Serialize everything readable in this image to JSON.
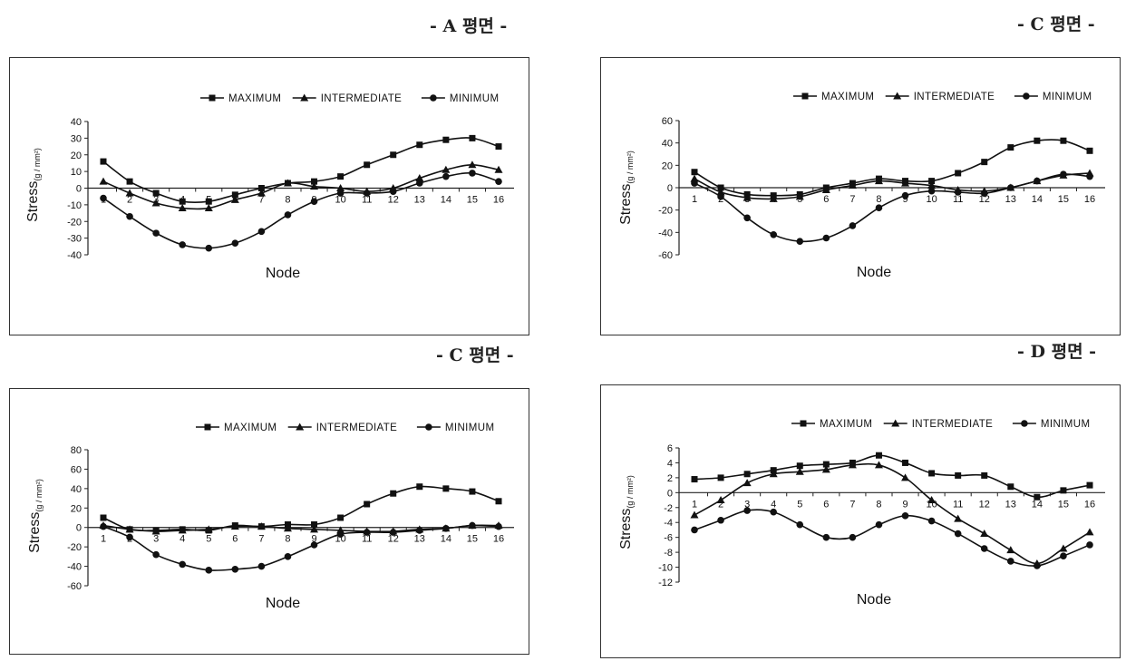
{
  "panel_titles": [
    "- A 평면 -",
    "- C 평면 -",
    "- C 평면 -",
    "- D 평면 -"
  ],
  "legend": [
    "MAXIMUM",
    "INTERMEDIATE",
    "MINIMUM"
  ],
  "xlabel": "Node",
  "ylabel_main": "Stress",
  "ylabel_sub": "(g / mm²)",
  "chart_data": [
    {
      "type": "line",
      "title": "- A 평면 -",
      "xlabel": "Node",
      "ylabel": "Stress(g / mm²)",
      "ylim": [
        -40,
        40
      ],
      "yticks": [
        40,
        30,
        20,
        10,
        0,
        -10,
        -20,
        -30,
        -40
      ],
      "x": [
        1,
        2,
        3,
        4,
        5,
        6,
        7,
        8,
        9,
        10,
        11,
        12,
        13,
        14,
        15,
        16
      ],
      "legend_position": "top-right",
      "series": [
        {
          "name": "MAXIMUM",
          "marker": "square",
          "values": [
            16,
            4,
            -3,
            -8,
            -8,
            -4,
            0,
            3,
            4,
            7,
            14,
            20,
            26,
            29,
            30,
            25
          ]
        },
        {
          "name": "INTERMEDIATE",
          "marker": "triangle",
          "values": [
            4,
            -3,
            -9,
            -12,
            -12,
            -7,
            -3,
            3,
            1,
            0,
            -2,
            0,
            6,
            11,
            14,
            11
          ]
        },
        {
          "name": "MINIMUM",
          "marker": "circle",
          "values": [
            -6,
            -17,
            -27,
            -34,
            -36,
            -33,
            -26,
            -16,
            -8,
            -3,
            -3,
            -2,
            3,
            7,
            9,
            4
          ]
        }
      ]
    },
    {
      "type": "line",
      "title": "- C 평면 -",
      "xlabel": "Node",
      "ylabel": "Stress(g / mm²)",
      "ylim": [
        -60,
        60
      ],
      "yticks": [
        60,
        40,
        20,
        0,
        -20,
        -40,
        -60
      ],
      "x": [
        1,
        2,
        3,
        4,
        5,
        6,
        7,
        8,
        9,
        10,
        11,
        12,
        13,
        14,
        15,
        16
      ],
      "legend_position": "top-right",
      "series": [
        {
          "name": "MAXIMUM",
          "marker": "square",
          "values": [
            14,
            0,
            -6,
            -7,
            -6,
            0,
            4,
            8,
            6,
            6,
            13,
            23,
            36,
            42,
            42,
            33
          ]
        },
        {
          "name": "INTERMEDIATE",
          "marker": "triangle",
          "values": [
            8,
            -4,
            -9,
            -10,
            -8,
            -2,
            2,
            6,
            4,
            2,
            -2,
            -3,
            0,
            6,
            11,
            13
          ]
        },
        {
          "name": "MINIMUM",
          "marker": "circle",
          "values": [
            4,
            -8,
            -27,
            -42,
            -48,
            -45,
            -34,
            -18,
            -7,
            -3,
            -4,
            -5,
            0,
            6,
            12,
            10
          ]
        }
      ]
    },
    {
      "type": "line",
      "title": "- C 평면 -",
      "xlabel": "Node",
      "ylabel": "Stress(g / mm²)",
      "ylim": [
        -60,
        80
      ],
      "yticks": [
        80,
        60,
        40,
        20,
        0,
        -20,
        -40,
        -60
      ],
      "x": [
        1,
        2,
        3,
        4,
        5,
        6,
        7,
        8,
        9,
        10,
        11,
        12,
        13,
        14,
        15,
        16
      ],
      "legend_position": "top-right",
      "series": [
        {
          "name": "MAXIMUM",
          "marker": "square",
          "values": [
            10,
            -2,
            -3,
            -2,
            -3,
            2,
            1,
            3,
            3,
            10,
            24,
            35,
            42,
            40,
            37,
            27
          ]
        },
        {
          "name": "INTERMEDIATE",
          "marker": "triangle",
          "values": [
            2,
            -2,
            -4,
            -3,
            -2,
            1,
            1,
            -1,
            -2,
            -3,
            -4,
            -4,
            -2,
            -1,
            2,
            2
          ]
        },
        {
          "name": "MINIMUM",
          "marker": "circle",
          "values": [
            1,
            -10,
            -28,
            -38,
            -44,
            -43,
            -40,
            -30,
            -18,
            -7,
            -5,
            -5,
            -3,
            -1,
            2,
            1
          ]
        }
      ]
    },
    {
      "type": "line",
      "title": "- D 평면 -",
      "xlabel": "Node",
      "ylabel": "Stress(g / mm²)",
      "ylim": [
        -12,
        6
      ],
      "yticks": [
        6,
        4,
        2,
        0,
        -2,
        -4,
        -6,
        -8,
        -10,
        -12
      ],
      "x": [
        1,
        2,
        3,
        4,
        5,
        6,
        7,
        8,
        9,
        10,
        11,
        12,
        13,
        14,
        15,
        16
      ],
      "legend_position": "top-right",
      "series": [
        {
          "name": "MAXIMUM",
          "marker": "square",
          "values": [
            1.8,
            2,
            2.5,
            3,
            3.6,
            3.8,
            4,
            5,
            4,
            2.6,
            2.3,
            2.3,
            0.8,
            -0.6,
            0.3,
            1
          ]
        },
        {
          "name": "INTERMEDIATE",
          "marker": "triangle",
          "values": [
            -3,
            -1,
            1.3,
            2.5,
            2.8,
            3.1,
            3.7,
            3.7,
            2,
            -1,
            -3.5,
            -5.5,
            -7.7,
            -9.5,
            -7.5,
            -5.3
          ]
        },
        {
          "name": "MINIMUM",
          "marker": "circle",
          "values": [
            -5,
            -3.7,
            -2.4,
            -2.6,
            -4.3,
            -6,
            -6,
            -4.3,
            -3.1,
            -3.8,
            -5.5,
            -7.5,
            -9.2,
            -9.8,
            -8.5,
            -7
          ]
        }
      ]
    }
  ]
}
